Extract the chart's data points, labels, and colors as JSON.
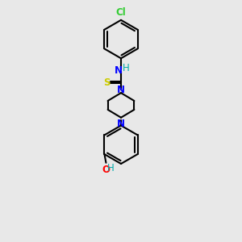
{
  "bg_color": "#e8e8e8",
  "bond_color": "#000000",
  "line_width": 1.5,
  "atom_colors": {
    "N": "#0000ff",
    "S": "#cccc00",
    "O": "#ff0000",
    "Cl": "#33cc33",
    "H": "#00aaaa",
    "C": "#000000"
  },
  "font_size": 8.5,
  "fig_size": [
    3.0,
    3.0
  ],
  "dpi": 100,
  "xlim": [
    0,
    10
  ],
  "ylim": [
    0,
    18
  ]
}
